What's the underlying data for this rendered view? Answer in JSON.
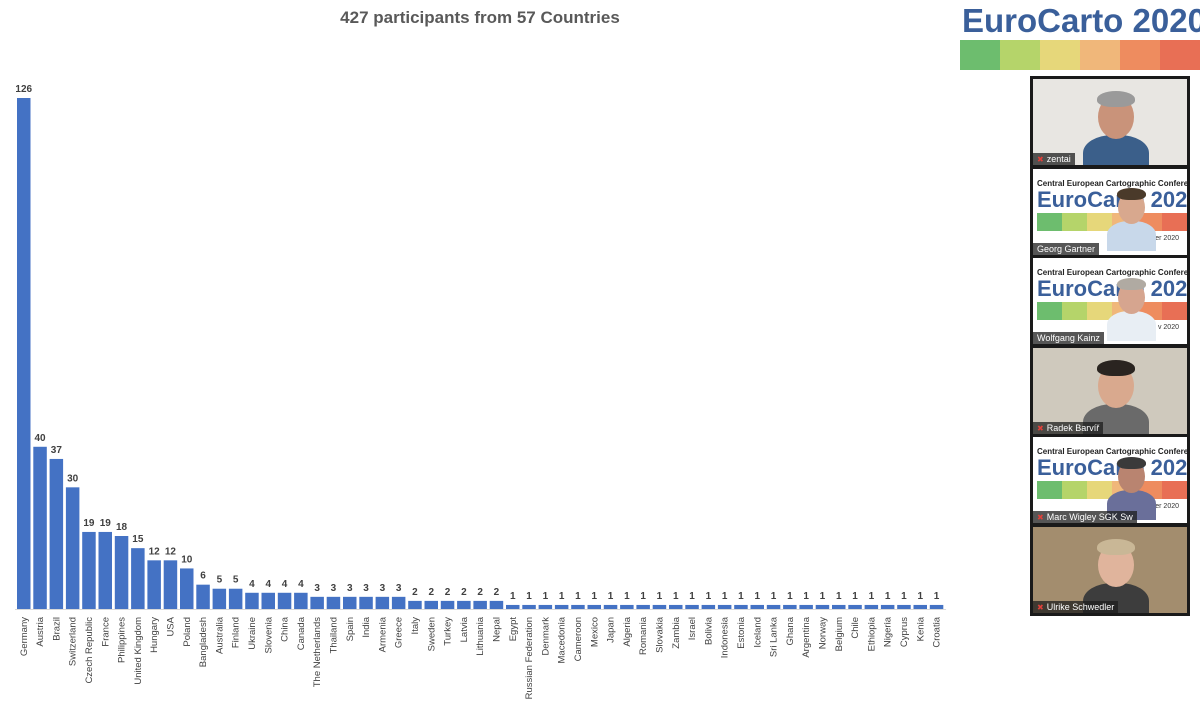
{
  "header": {
    "title": "427 participants from 57 Countries",
    "logo_text": "EuroCarto 2020",
    "logo_colors": [
      "#6dbd6e",
      "#b5d46a",
      "#e6d77a",
      "#f0b77a",
      "#ee8c5f",
      "#e86f55"
    ]
  },
  "chart_data": {
    "type": "bar",
    "title": "427 participants from 57 Countries",
    "bar_color": "#4472c4",
    "ylim": [
      0,
      126
    ],
    "grid": false,
    "categories": [
      "Germany",
      "Austria",
      "Brazil",
      "Switzerland",
      "Czech Republic",
      "France",
      "Philippines",
      "United Kingdom",
      "Hungary",
      "USA",
      "Poland",
      "Bangladesh",
      "Australia",
      "Finland",
      "Ukraine",
      "Slovenia",
      "China",
      "Canada",
      "The Netherlands",
      "Thailand",
      "Spain",
      "India",
      "Armenia",
      "Greece",
      "Italy",
      "Sweden",
      "Turkey",
      "Latvia",
      "Lithuania",
      "Nepal",
      "Egypt",
      "Russian Federation",
      "Denmark",
      "Macedonia",
      "Cameroon",
      "Mexico",
      "Japan",
      "Algeria",
      "Romania",
      "Slovakia",
      "Zambia",
      "Israel",
      "Bolivia",
      "Indonesia",
      "Estonia",
      "Iceland",
      "Sri Lanka",
      "Ghana",
      "Argentina",
      "Norway",
      "Belgium",
      "Chile",
      "Ethiopia",
      "Nigeria",
      "Cyprus",
      "Kenia",
      "Croatia"
    ],
    "values": [
      126,
      40,
      37,
      30,
      19,
      19,
      18,
      15,
      12,
      12,
      10,
      6,
      5,
      5,
      4,
      4,
      4,
      4,
      3,
      3,
      3,
      3,
      3,
      3,
      2,
      2,
      2,
      2,
      2,
      2,
      1,
      1,
      1,
      1,
      1,
      1,
      1,
      1,
      1,
      1,
      1,
      1,
      1,
      1,
      1,
      1,
      1,
      1,
      1,
      1,
      1,
      1,
      1,
      1,
      1,
      1,
      1
    ]
  },
  "participants": [
    {
      "name": "zentai",
      "type": "camera",
      "bg": "#e8e6e2",
      "skin": "#c9937a",
      "hair": "#9a9a9a",
      "shirt": "#3b5f8a",
      "muted": true
    },
    {
      "name": "Georg Gartner",
      "type": "slide",
      "skin": "#d8a88e",
      "hair": "#4a3a2a",
      "shirt": "#c8d8ea",
      "muted": false,
      "slide_head": "Central European Cartographic Conference",
      "slide_logo": "EuroCarto 2020",
      "slide_date": "ber 2020"
    },
    {
      "name": "Wolfgang Kainz",
      "type": "slide",
      "skin": "#d6a58f",
      "hair": "#b0aaa2",
      "shirt": "#e8eef4",
      "muted": false,
      "slide_head": "Central European Cartographic Conference",
      "slide_logo": "EuroCarto 2020",
      "slide_date": "v 2020"
    },
    {
      "name": "Radek Barvíř",
      "type": "camera",
      "bg": "#cfc9bd",
      "skin": "#d9a98e",
      "hair": "#2a2420",
      "shirt": "#6a6a6a",
      "muted": true
    },
    {
      "name": "Marc Wigley SGK Sw",
      "type": "slide",
      "skin": "#b98470",
      "hair": "#3a3a3a",
      "shirt": "#6a6f9a",
      "muted": true,
      "slide_head": "Central European Cartographic Conference",
      "slide_logo": "EuroCarto 2020",
      "slide_date": "mber 2020"
    },
    {
      "name": "Ulrike Schwedler",
      "type": "camera",
      "bg": "#a38d6e",
      "skin": "#e0b49c",
      "hair": "#c9b796",
      "shirt": "#3d3d3d",
      "muted": true
    }
  ]
}
